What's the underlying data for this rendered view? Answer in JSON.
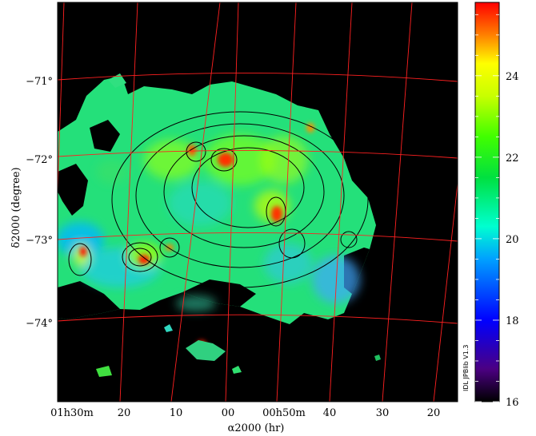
{
  "map": {
    "y_axis_title": "δ2000 (degree)",
    "x_axis_title": "α2000 (hr)",
    "dec_ticks": [
      "−71°",
      "−72°",
      "−73°",
      "−74°"
    ],
    "ra_ticks": [
      "01h30m",
      "20",
      "10",
      "00",
      "00h50m",
      "40",
      "30",
      "20"
    ],
    "grid_color": "#ff2020",
    "background_color": "#000000"
  },
  "colorbar": {
    "ticks": [
      "16",
      "18",
      "20",
      "22",
      "24"
    ],
    "min": 16,
    "max": 25.8,
    "stops": [
      {
        "value": 16,
        "color": "#000000"
      },
      {
        "value": 16.8,
        "color": "#4b0082"
      },
      {
        "value": 18,
        "color": "#0000ff"
      },
      {
        "value": 19.5,
        "color": "#00a0ff"
      },
      {
        "value": 20.3,
        "color": "#00ffd0"
      },
      {
        "value": 21.5,
        "color": "#00e040"
      },
      {
        "value": 22.5,
        "color": "#40ff00"
      },
      {
        "value": 23.5,
        "color": "#c8ff00"
      },
      {
        "value": 24.3,
        "color": "#ffff00"
      },
      {
        "value": 25,
        "color": "#ff8000"
      },
      {
        "value": 25.8,
        "color": "#ff0000"
      }
    ]
  },
  "watermark": "IDL JPBlib V1.3"
}
